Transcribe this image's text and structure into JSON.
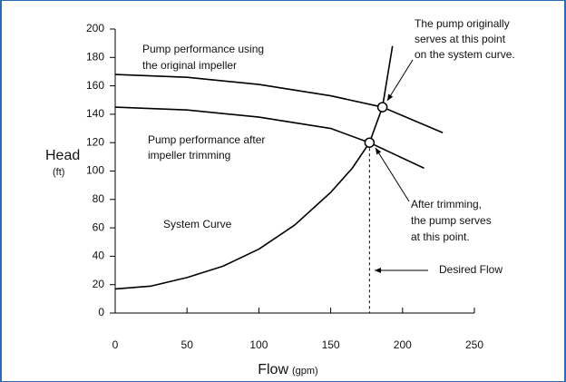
{
  "chart_data": {
    "type": "line",
    "xlabel": "Flow",
    "xlabel_unit": "(gpm)",
    "ylabel": "Head",
    "ylabel_unit": "(ft)",
    "xlim": [
      0,
      250
    ],
    "xticks": [
      0,
      50,
      100,
      150,
      200,
      250
    ],
    "ylim": [
      0,
      200
    ],
    "yticks": [
      0,
      20,
      40,
      60,
      80,
      100,
      120,
      140,
      160,
      180,
      200
    ],
    "series": [
      {
        "name": "Pump performance using the original impeller",
        "color": "#000000",
        "x": [
          0,
          50,
          100,
          150,
          186,
          228
        ],
        "values": [
          168,
          166,
          161,
          153,
          145,
          127
        ]
      },
      {
        "name": "Pump performance after impeller trimming",
        "color": "#000000",
        "x": [
          0,
          50,
          100,
          150,
          177,
          215
        ],
        "values": [
          145,
          143,
          138,
          130,
          120,
          102
        ]
      },
      {
        "name": "System Curve",
        "color": "#000000",
        "x": [
          0,
          25,
          50,
          75,
          100,
          125,
          150,
          165,
          177,
          186,
          193
        ],
        "values": [
          17,
          19,
          25,
          33,
          45,
          62,
          85,
          102,
          120,
          145,
          188
        ]
      }
    ],
    "markers": [
      {
        "x": 186,
        "y": 145
      },
      {
        "x": 177,
        "y": 120
      }
    ],
    "annotations": [
      {
        "lines": [
          "Pump performance using",
          "the original impeller"
        ]
      },
      {
        "lines": [
          "Pump performance after",
          "impeller trimming"
        ]
      },
      {
        "lines": [
          "System Curve"
        ]
      },
      {
        "lines": [
          "The pump originally",
          "serves at this point",
          "on the system curve."
        ]
      },
      {
        "lines": [
          "After trimming,",
          "the pump serves",
          "at this point."
        ]
      },
      {
        "lines": [
          "Desired Flow"
        ]
      }
    ]
  }
}
